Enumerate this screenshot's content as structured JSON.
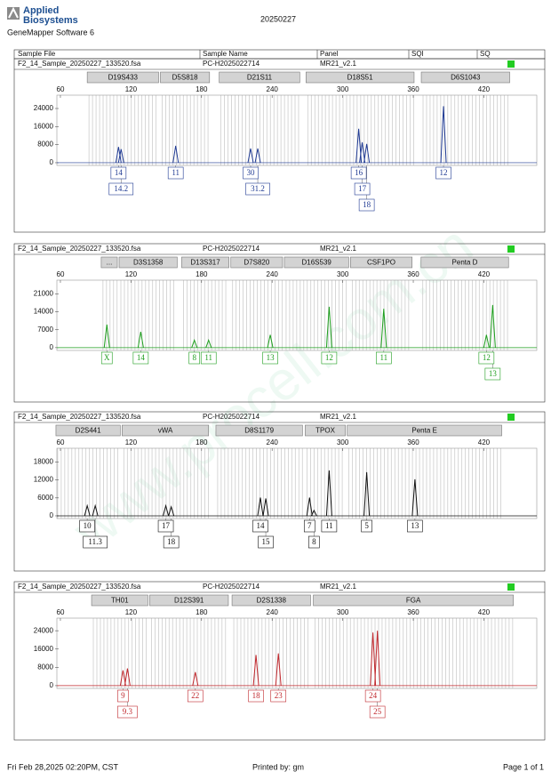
{
  "header": {
    "logo_line1": "Applied",
    "logo_line2": "Biosystems",
    "software": "GeneMapper Software 6",
    "date": "20250227",
    "columns": [
      "Sample File",
      "Sample Name",
      "Panel",
      "SQI",
      "SQ"
    ]
  },
  "watermark": "www.procell.com.cn",
  "chart_data": [
    {
      "type": "electropherogram",
      "sample_file": "F2_14_Sample_20250227_133520.fsa",
      "sample_name": "PC-H2025022714",
      "panel": "MR21_v2.1",
      "color": "#1f3a93",
      "status_color": "#22cc22",
      "markers": [
        {
          "name": "D19S433",
          "start": 82.8,
          "end": 143.5
        },
        {
          "name": "D5S818",
          "start": 145,
          "end": 186.8
        },
        {
          "name": "D21S11",
          "start": 195,
          "end": 263.5
        },
        {
          "name": "D18S51",
          "start": 268.8,
          "end": 360.7
        },
        {
          "name": "D6S1043",
          "start": 366.8,
          "end": 442
        }
      ],
      "xlim": [
        57,
        465
      ],
      "xticks": [
        60,
        120,
        180,
        240,
        300,
        360,
        420
      ],
      "ylim": [
        -1200,
        29900
      ],
      "yticks": [
        0,
        8000,
        16000,
        24000
      ],
      "peaks": [
        {
          "size": 109.4,
          "height": 7000,
          "allele": "14"
        },
        {
          "size": 111.6,
          "height": 6000,
          "allele": "14.2"
        },
        {
          "size": 158,
          "height": 7500,
          "allele": "11"
        },
        {
          "size": 221.7,
          "height": 6300,
          "allele": "30"
        },
        {
          "size": 227.8,
          "height": 6300,
          "allele": "31.2"
        },
        {
          "size": 313.6,
          "height": 15000,
          "allele": "16"
        },
        {
          "size": 316.6,
          "height": 9000,
          "allele": "17"
        },
        {
          "size": 320.4,
          "height": 8300,
          "allele": "18"
        },
        {
          "size": 385.7,
          "height": 25000,
          "allele": "12"
        }
      ]
    },
    {
      "type": "electropherogram",
      "sample_file": "F2_14_Sample_20250227_133520.fsa",
      "sample_name": "PC-H2025022714",
      "panel": "MR21_v2.1",
      "color": "#1e9e1e",
      "status_color": "#22cc22",
      "markers": [
        {
          "name": "...",
          "start": 94.7,
          "end": 108.4
        },
        {
          "name": "D3S1358",
          "start": 109.9,
          "end": 159.3
        },
        {
          "name": "D13S317",
          "start": 163.1,
          "end": 203.3
        },
        {
          "name": "D7S820",
          "start": 204.9,
          "end": 248.9
        },
        {
          "name": "D16S539",
          "start": 250.4,
          "end": 305.1
        },
        {
          "name": "CSF1PO",
          "start": 306.6,
          "end": 359
        },
        {
          "name": "Penta D",
          "start": 366.6,
          "end": 441
        }
      ],
      "xlim": [
        57,
        465
      ],
      "xticks": [
        60,
        120,
        180,
        240,
        300,
        360,
        420
      ],
      "ylim": [
        -1100,
        26400
      ],
      "yticks": [
        0,
        7000,
        14000,
        21000
      ],
      "peaks": [
        {
          "size": 99.5,
          "height": 9000,
          "allele": "X"
        },
        {
          "size": 128.3,
          "height": 6200,
          "allele": "14"
        },
        {
          "size": 173.9,
          "height": 2900,
          "allele": "8"
        },
        {
          "size": 186,
          "height": 2900,
          "allele": "11"
        },
        {
          "size": 238.4,
          "height": 5000,
          "allele": "13"
        },
        {
          "size": 288.5,
          "height": 16000,
          "allele": "12"
        },
        {
          "size": 334.9,
          "height": 15200,
          "allele": "11"
        },
        {
          "size": 422.2,
          "height": 5000,
          "allele": "12"
        },
        {
          "size": 427.5,
          "height": 16700,
          "allele": "13"
        }
      ]
    },
    {
      "type": "electropherogram",
      "sample_file": "F2_14_Sample_20250227_133520.fsa",
      "sample_name": "PC-H2025022714",
      "panel": "MR21_v2.1",
      "color": "#111111",
      "status_color": "#22cc22",
      "markers": [
        {
          "name": "D2S441",
          "start": 56.2,
          "end": 110.9
        },
        {
          "name": "vWA",
          "start": 112.4,
          "end": 186
        },
        {
          "name": "D8S1179",
          "start": 192.2,
          "end": 265.8
        },
        {
          "name": "TPOX",
          "start": 268.1,
          "end": 302.3
        },
        {
          "name": "Penta E",
          "start": 303.8,
          "end": 435.2
        }
      ],
      "xlim": [
        57,
        465
      ],
      "xticks": [
        60,
        120,
        180,
        240,
        300,
        360,
        420
      ],
      "ylim": [
        -900,
        22600
      ],
      "yticks": [
        0,
        6000,
        12000,
        18000
      ],
      "peaks": [
        {
          "size": 82.8,
          "height": 3400,
          "allele": "10"
        },
        {
          "size": 89.6,
          "height": 3400,
          "allele": "11.3"
        },
        {
          "size": 149.6,
          "height": 3400,
          "allele": "17"
        },
        {
          "size": 154.2,
          "height": 3000,
          "allele": "18"
        },
        {
          "size": 230,
          "height": 6100,
          "allele": "14"
        },
        {
          "size": 234.6,
          "height": 5800,
          "allele": "15"
        },
        {
          "size": 271.8,
          "height": 6100,
          "allele": "7"
        },
        {
          "size": 275.6,
          "height": 1800,
          "allele": "8"
        },
        {
          "size": 288.5,
          "height": 15200,
          "allele": "11"
        },
        {
          "size": 320.4,
          "height": 14600,
          "allele": "5"
        },
        {
          "size": 361.4,
          "height": 12200,
          "allele": "13"
        }
      ]
    },
    {
      "type": "electropherogram",
      "sample_file": "F2_14_Sample_20250227_133520.fsa",
      "sample_name": "PC-H2025022714",
      "panel": "MR21_v2.1",
      "color": "#c0282d",
      "status_color": "#22cc22",
      "markers": [
        {
          "name": "TH01",
          "start": 86.5,
          "end": 134.4
        },
        {
          "name": "D12S391",
          "start": 135.9,
          "end": 202.8
        },
        {
          "name": "D2S1338",
          "start": 205.9,
          "end": 272.7
        },
        {
          "name": "FGA",
          "start": 275,
          "end": 445.1
        }
      ],
      "xlim": [
        57,
        465
      ],
      "xticks": [
        60,
        120,
        180,
        240,
        300,
        360,
        420
      ],
      "ylim": [
        -1200,
        29500
      ],
      "yticks": [
        0,
        8000,
        16000,
        24000
      ],
      "peaks": [
        {
          "size": 113.2,
          "height": 6700,
          "allele": "9"
        },
        {
          "size": 117,
          "height": 7500,
          "allele": "9.3"
        },
        {
          "size": 174.7,
          "height": 5900,
          "allele": "22"
        },
        {
          "size": 226.3,
          "height": 13400,
          "allele": "18"
        },
        {
          "size": 245.3,
          "height": 14100,
          "allele": "23"
        },
        {
          "size": 325.7,
          "height": 23200,
          "allele": "24"
        },
        {
          "size": 329.5,
          "height": 24000,
          "allele": "25"
        }
      ]
    }
  ],
  "footer": {
    "printed_on": "Fri Feb 28,2025 02:20PM, CST",
    "printed_by": "Printed by: gm",
    "page": "Page 1 of 1"
  }
}
